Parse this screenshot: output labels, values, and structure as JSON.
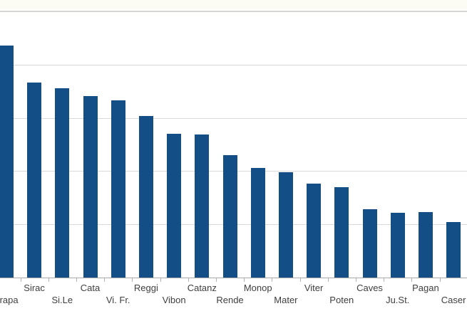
{
  "chart_data": {
    "type": "bar",
    "title": "",
    "xlabel": "",
    "ylabel": "",
    "categories": [
      "Trapa",
      "Sirac",
      "Si.Le",
      "Cata",
      "Vi. Fr.",
      "Reggi",
      "Vibon",
      "Catanz",
      "Rende",
      "Monop",
      "Mater",
      "Viter",
      "Poten",
      "Caves",
      "Ju.St.",
      "Pagan",
      "Caser"
    ],
    "values": [
      4.36,
      3.66,
      3.56,
      3.41,
      3.33,
      3.03,
      2.7,
      2.69,
      2.3,
      2.06,
      1.98,
      1.76,
      1.7,
      1.28,
      1.22,
      1.23,
      1.04
    ],
    "ylim": [
      0,
      5
    ],
    "y_gridline_interval": 1,
    "y_tick_labels_visible": false,
    "grid": "horizontal",
    "legend": "none",
    "label_rows": "staggered-two-rows",
    "bar_color": "#134e86",
    "gridline_color": "#d9d9d9",
    "axis_color": "#a9a9a9",
    "label_color": "#3f3f3f",
    "note": "Chart is cropped: y-axis scale labels and left edge of first bar/label are cut off; values estimated in gridline units (1 unit per gridline, 5 gridlines to top)."
  }
}
